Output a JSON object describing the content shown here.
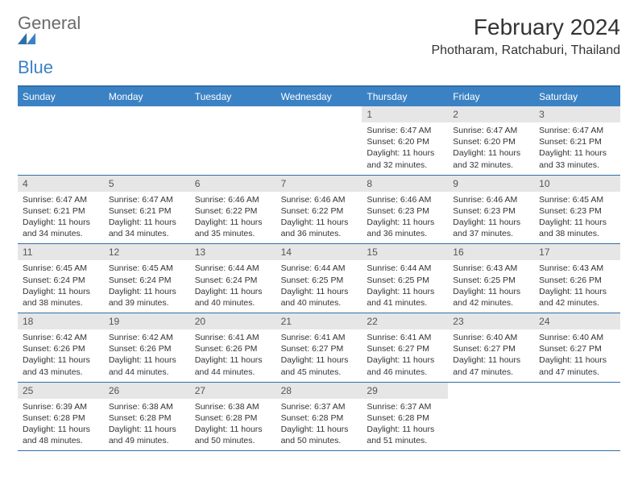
{
  "logo": {
    "general": "General",
    "blue": "Blue"
  },
  "title": "February 2024",
  "location": "Photharam, Ratchaburi, Thailand",
  "colors": {
    "header_bg": "#3b82c4",
    "rule": "#2f6fa8",
    "daynum_bg": "#e6e6e6",
    "text": "#333333",
    "logo_gray": "#6b6b6b"
  },
  "typography": {
    "title_fontsize": 28,
    "location_fontsize": 16,
    "dow_fontsize": 12,
    "daynum_fontsize": 12,
    "info_fontsize": 10.5
  },
  "dow": [
    "Sunday",
    "Monday",
    "Tuesday",
    "Wednesday",
    "Thursday",
    "Friday",
    "Saturday"
  ],
  "weeks": [
    [
      null,
      null,
      null,
      null,
      {
        "n": "1",
        "sr": "6:47 AM",
        "ss": "6:20 PM",
        "dl": "11 hours and 32 minutes."
      },
      {
        "n": "2",
        "sr": "6:47 AM",
        "ss": "6:20 PM",
        "dl": "11 hours and 32 minutes."
      },
      {
        "n": "3",
        "sr": "6:47 AM",
        "ss": "6:21 PM",
        "dl": "11 hours and 33 minutes."
      }
    ],
    [
      {
        "n": "4",
        "sr": "6:47 AM",
        "ss": "6:21 PM",
        "dl": "11 hours and 34 minutes."
      },
      {
        "n": "5",
        "sr": "6:47 AM",
        "ss": "6:21 PM",
        "dl": "11 hours and 34 minutes."
      },
      {
        "n": "6",
        "sr": "6:46 AM",
        "ss": "6:22 PM",
        "dl": "11 hours and 35 minutes."
      },
      {
        "n": "7",
        "sr": "6:46 AM",
        "ss": "6:22 PM",
        "dl": "11 hours and 36 minutes."
      },
      {
        "n": "8",
        "sr": "6:46 AM",
        "ss": "6:23 PM",
        "dl": "11 hours and 36 minutes."
      },
      {
        "n": "9",
        "sr": "6:46 AM",
        "ss": "6:23 PM",
        "dl": "11 hours and 37 minutes."
      },
      {
        "n": "10",
        "sr": "6:45 AM",
        "ss": "6:23 PM",
        "dl": "11 hours and 38 minutes."
      }
    ],
    [
      {
        "n": "11",
        "sr": "6:45 AM",
        "ss": "6:24 PM",
        "dl": "11 hours and 38 minutes."
      },
      {
        "n": "12",
        "sr": "6:45 AM",
        "ss": "6:24 PM",
        "dl": "11 hours and 39 minutes."
      },
      {
        "n": "13",
        "sr": "6:44 AM",
        "ss": "6:24 PM",
        "dl": "11 hours and 40 minutes."
      },
      {
        "n": "14",
        "sr": "6:44 AM",
        "ss": "6:25 PM",
        "dl": "11 hours and 40 minutes."
      },
      {
        "n": "15",
        "sr": "6:44 AM",
        "ss": "6:25 PM",
        "dl": "11 hours and 41 minutes."
      },
      {
        "n": "16",
        "sr": "6:43 AM",
        "ss": "6:25 PM",
        "dl": "11 hours and 42 minutes."
      },
      {
        "n": "17",
        "sr": "6:43 AM",
        "ss": "6:26 PM",
        "dl": "11 hours and 42 minutes."
      }
    ],
    [
      {
        "n": "18",
        "sr": "6:42 AM",
        "ss": "6:26 PM",
        "dl": "11 hours and 43 minutes."
      },
      {
        "n": "19",
        "sr": "6:42 AM",
        "ss": "6:26 PM",
        "dl": "11 hours and 44 minutes."
      },
      {
        "n": "20",
        "sr": "6:41 AM",
        "ss": "6:26 PM",
        "dl": "11 hours and 44 minutes."
      },
      {
        "n": "21",
        "sr": "6:41 AM",
        "ss": "6:27 PM",
        "dl": "11 hours and 45 minutes."
      },
      {
        "n": "22",
        "sr": "6:41 AM",
        "ss": "6:27 PM",
        "dl": "11 hours and 46 minutes."
      },
      {
        "n": "23",
        "sr": "6:40 AM",
        "ss": "6:27 PM",
        "dl": "11 hours and 47 minutes."
      },
      {
        "n": "24",
        "sr": "6:40 AM",
        "ss": "6:27 PM",
        "dl": "11 hours and 47 minutes."
      }
    ],
    [
      {
        "n": "25",
        "sr": "6:39 AM",
        "ss": "6:28 PM",
        "dl": "11 hours and 48 minutes."
      },
      {
        "n": "26",
        "sr": "6:38 AM",
        "ss": "6:28 PM",
        "dl": "11 hours and 49 minutes."
      },
      {
        "n": "27",
        "sr": "6:38 AM",
        "ss": "6:28 PM",
        "dl": "11 hours and 50 minutes."
      },
      {
        "n": "28",
        "sr": "6:37 AM",
        "ss": "6:28 PM",
        "dl": "11 hours and 50 minutes."
      },
      {
        "n": "29",
        "sr": "6:37 AM",
        "ss": "6:28 PM",
        "dl": "11 hours and 51 minutes."
      },
      null,
      null
    ]
  ],
  "labels": {
    "sunrise": "Sunrise:",
    "sunset": "Sunset:",
    "daylight": "Daylight:"
  }
}
